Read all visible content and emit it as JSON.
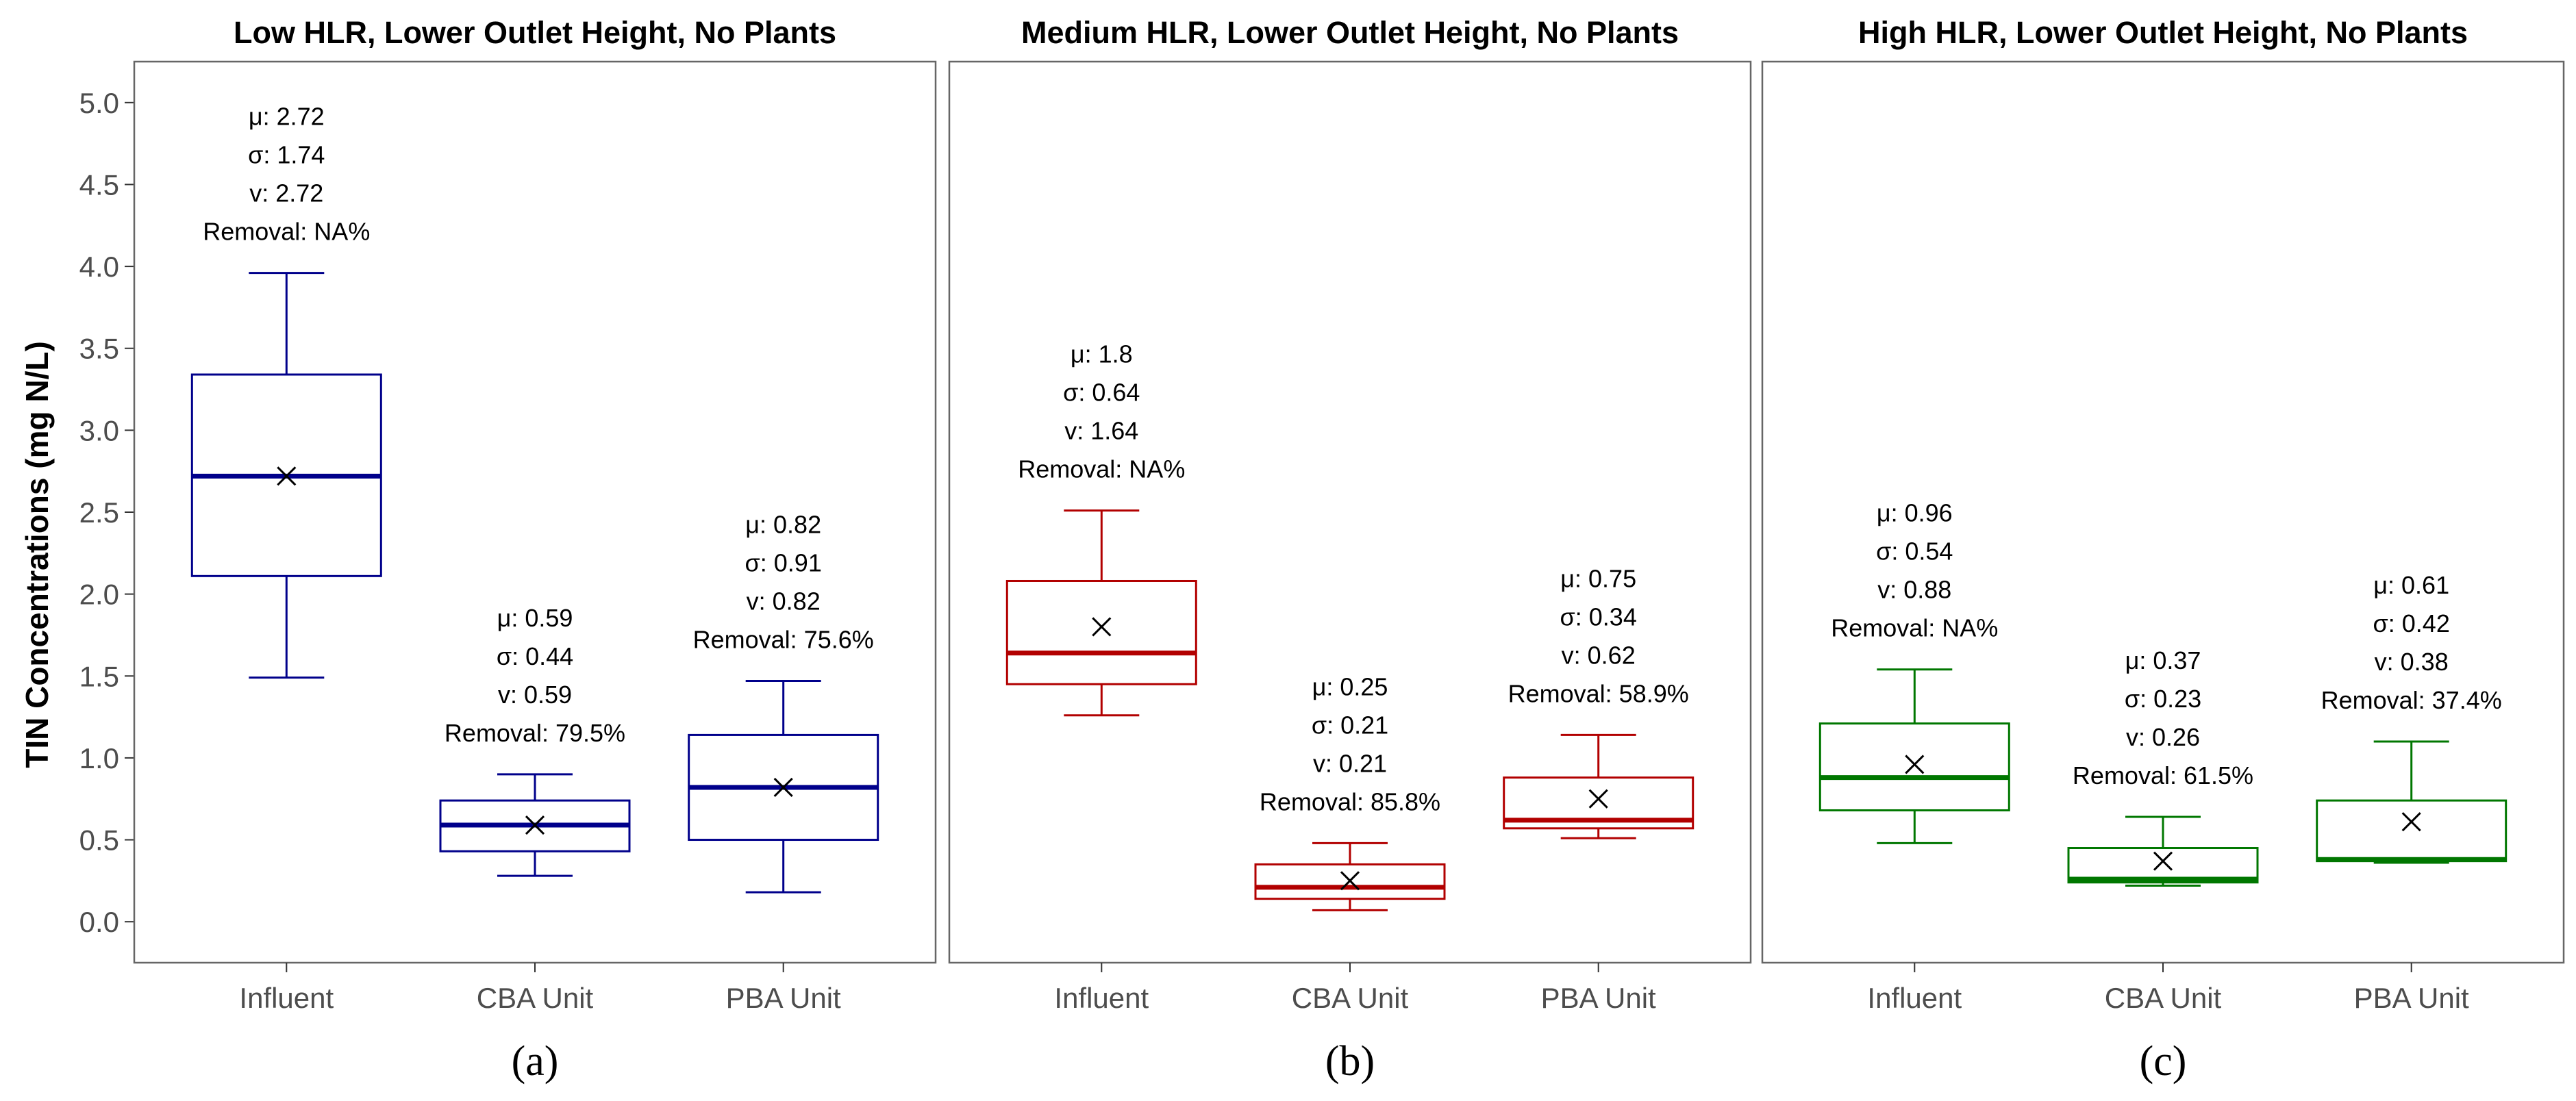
{
  "chart_data": {
    "type": "box",
    "ylabel": "TIN Concentrations (mg N/L)",
    "ylim": [
      -0.25,
      5.25
    ],
    "yticks": [
      "0.0",
      "0.5",
      "1.0",
      "1.5",
      "2.0",
      "2.5",
      "3.0",
      "3.5",
      "4.0",
      "4.5",
      "5.0"
    ],
    "categories": [
      "Influent",
      "CBA Unit",
      "PBA Unit"
    ],
    "grid": false,
    "panels": [
      {
        "title": "Low HLR, Lower Outlet Height, No Plants",
        "sublabel": "(a)",
        "color": "#00008b",
        "boxes": [
          {
            "category": "Influent",
            "whisker_low": 1.49,
            "q1": 2.11,
            "median": 2.72,
            "q3": 3.34,
            "whisker_high": 3.96,
            "mean": 2.72,
            "labels": [
              "μ: 2.72",
              "σ: 1.74",
              "v: 2.72",
              "Removal: NA%"
            ]
          },
          {
            "category": "CBA Unit",
            "whisker_low": 0.28,
            "q1": 0.43,
            "median": 0.59,
            "q3": 0.74,
            "whisker_high": 0.9,
            "mean": 0.59,
            "labels": [
              "μ: 0.59",
              "σ: 0.44",
              "v: 0.59",
              "Removal: 79.5%"
            ]
          },
          {
            "category": "PBA Unit",
            "whisker_low": 0.18,
            "q1": 0.5,
            "median": 0.82,
            "q3": 1.14,
            "whisker_high": 1.47,
            "mean": 0.82,
            "labels": [
              "μ: 0.82",
              "σ: 0.91",
              "v: 0.82",
              "Removal: 75.6%"
            ]
          }
        ]
      },
      {
        "title": "Medium HLR, Lower Outlet Height, No Plants",
        "sublabel": "(b)",
        "color": "#b20000",
        "boxes": [
          {
            "category": "Influent",
            "whisker_low": 1.26,
            "q1": 1.45,
            "median": 1.64,
            "q3": 2.08,
            "whisker_high": 2.51,
            "mean": 1.8,
            "labels": [
              "μ: 1.8",
              "σ: 0.64",
              "v: 1.64",
              "Removal: NA%"
            ]
          },
          {
            "category": "CBA Unit",
            "whisker_low": 0.07,
            "q1": 0.14,
            "median": 0.21,
            "q3": 0.35,
            "whisker_high": 0.48,
            "mean": 0.25,
            "labels": [
              "μ: 0.25",
              "σ: 0.21",
              "v: 0.21",
              "Removal: 85.8%"
            ]
          },
          {
            "category": "PBA Unit",
            "whisker_low": 0.51,
            "q1": 0.57,
            "median": 0.62,
            "q3": 0.88,
            "whisker_high": 1.14,
            "mean": 0.75,
            "labels": [
              "μ: 0.75",
              "σ: 0.34",
              "v: 0.62",
              "Removal: 58.9%"
            ]
          }
        ]
      },
      {
        "title": "High HLR, Lower Outlet Height, No Plants",
        "sublabel": "(c)",
        "color": "#007700",
        "boxes": [
          {
            "category": "Influent",
            "whisker_low": 0.48,
            "q1": 0.68,
            "median": 0.88,
            "q3": 1.21,
            "whisker_high": 1.54,
            "mean": 0.96,
            "labels": [
              "μ: 0.96",
              "σ: 0.54",
              "v: 0.88",
              "Removal: NA%"
            ]
          },
          {
            "category": "CBA Unit",
            "whisker_low": 0.22,
            "q1": 0.24,
            "median": 0.26,
            "q3": 0.45,
            "whisker_high": 0.64,
            "mean": 0.37,
            "labels": [
              "μ: 0.37",
              "σ: 0.23",
              "v: 0.26",
              "Removal: 61.5%"
            ]
          },
          {
            "category": "PBA Unit",
            "whisker_low": 0.36,
            "q1": 0.37,
            "median": 0.38,
            "q3": 0.74,
            "whisker_high": 1.1,
            "mean": 0.61,
            "labels": [
              "μ: 0.61",
              "σ: 0.42",
              "v: 0.38",
              "Removal: 37.4%"
            ]
          }
        ]
      }
    ]
  }
}
